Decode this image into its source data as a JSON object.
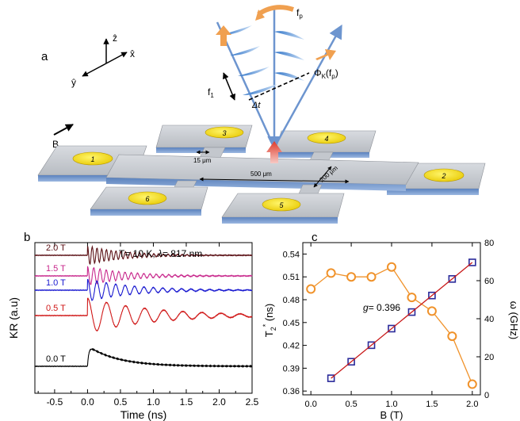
{
  "panel_a": {
    "label": "a",
    "axes": {
      "z": "ẑ",
      "x": "x̂",
      "y": "ŷ"
    },
    "field_label": "B",
    "f1_label": "f",
    "f1_sub": "1",
    "fp_label": "f",
    "fp_sub": "p",
    "dt_label": "Δt",
    "phi_main": "Φ",
    "phi_sub": "K",
    "phi_arg": "(f",
    "phi_arg_sub": "p",
    "phi_close": ")",
    "dim_15": "15 μm",
    "dim_500": "500 μm",
    "dim_200": "200 μm",
    "contacts": [
      "1",
      "2",
      "3",
      "4",
      "5",
      "6"
    ]
  },
  "panel_b": {
    "label": "b",
    "annotation_pre": "T= 10 K, ",
    "annotation_lambda": "λ",
    "annotation_post": "= 817 nm",
    "ylabel": "KR (a.u)",
    "xlabel": "Time (ns)",
    "trace_labels": [
      "2.0 T",
      "1.5 T",
      "1.0 T",
      "0.5 T",
      "0.0 T"
    ],
    "colors": [
      "#5a0f14",
      "#c8288c",
      "#1a1ad0",
      "#d01818",
      "#000000"
    ]
  },
  "panel_c": {
    "label": "c",
    "ylabel_left_main": "T",
    "ylabel_left_sub": "2",
    "ylabel_left_sup": "*",
    "ylabel_left_unit": " (ns)",
    "ylabel_right": "ω  (GHz)",
    "ylabel_right_sub": "L",
    "xlabel": "B (T)",
    "g_label": "g",
    "g_value": "= 0.396"
  },
  "chart_data": [
    {
      "type": "line",
      "xlabel": "Time (ns)",
      "ylabel": "KR (a.u)",
      "xlim": [
        -0.8,
        2.5
      ],
      "x_ticks": [
        "-0.5",
        "0.0",
        "0.5",
        "1.0",
        "1.5",
        "2.0",
        "2.5"
      ],
      "annotation": "T= 10 K, λ= 817 nm",
      "series": [
        {
          "name": "2.0 T",
          "color": "#5a0f14",
          "decay_ns": 0.55,
          "period_ns": 0.072
        },
        {
          "name": "1.5 T",
          "color": "#c8288c",
          "decay_ns": 0.6,
          "period_ns": 0.095
        },
        {
          "name": "1.0 T",
          "color": "#1a1ad0",
          "decay_ns": 0.7,
          "period_ns": 0.143
        },
        {
          "name": "0.5 T",
          "color": "#d01818",
          "decay_ns": 1.0,
          "period_ns": 0.29
        },
        {
          "name": "0.0 T",
          "color": "#000000",
          "decay_ns": 0.45
        }
      ]
    },
    {
      "type": "scatter",
      "xlabel": "B (T)",
      "ylabel": "T2* (ns)",
      "y2label": "ωL (GHz)",
      "xlim": [
        -0.1,
        2.1
      ],
      "ylim": [
        0.355,
        0.555
      ],
      "y2lim": [
        0,
        80
      ],
      "x_ticks": [
        "0.0",
        "0.5",
        "1.0",
        "1.5",
        "2.0"
      ],
      "y_ticks": [
        "0.36",
        "0.39",
        "0.42",
        "0.45",
        "0.48",
        "0.51",
        "0.54"
      ],
      "y2_ticks": [
        "0",
        "20",
        "40",
        "60",
        "80"
      ],
      "annotation": "g= 0.396",
      "series": [
        {
          "name": "T2*",
          "axis": "left",
          "color": "#f0922a",
          "marker": "circle",
          "x": [
            0.0,
            0.25,
            0.5,
            0.75,
            1.0,
            1.25,
            1.5,
            1.75,
            2.0
          ],
          "y": [
            0.494,
            0.515,
            0.51,
            0.51,
            0.523,
            0.483,
            0.465,
            0.432,
            0.369
          ]
        },
        {
          "name": "ωL",
          "axis": "right",
          "color": "#2a2a9a",
          "marker": "square",
          "x": [
            0.25,
            0.5,
            0.75,
            1.0,
            1.25,
            1.5,
            1.75,
            2.0
          ],
          "y": [
            8.7,
            17.4,
            26.1,
            34.8,
            43.5,
            52.2,
            60.9,
            69.6
          ]
        },
        {
          "name": "fit",
          "axis": "right",
          "color": "#c81818",
          "type": "line",
          "x": [
            0.25,
            2.0
          ],
          "y": [
            8.7,
            69.6
          ]
        }
      ]
    }
  ]
}
